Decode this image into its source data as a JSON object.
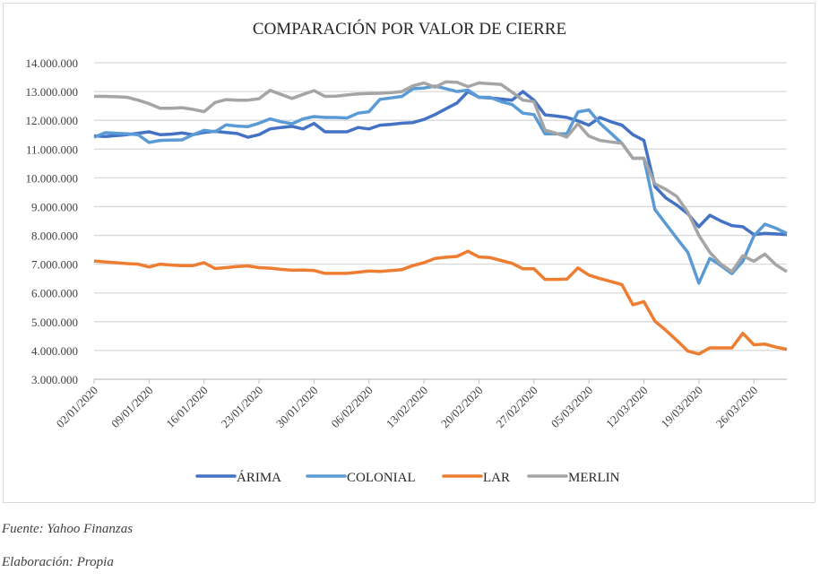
{
  "chart_data": {
    "type": "line",
    "title": "COMPARACIÓN POR VALOR DE CIERRE",
    "xlabel": "",
    "ylabel": "",
    "ylim": [
      3000000,
      14000000
    ],
    "y_ticks": [
      "3.000.000",
      "4.000.000",
      "5.000.000",
      "6.000.000",
      "7.000.000",
      "8.000.000",
      "9.000.000",
      "10.000.000",
      "11.000.000",
      "12.000.000",
      "13.000.000",
      "14.000.000"
    ],
    "x_tick_labels": [
      "02/01/2020",
      "09/01/2020",
      "16/01/2020",
      "23/01/2020",
      "30/01/2020",
      "06/02/2020",
      "13/02/2020",
      "20/02/2020",
      "27/02/2020",
      "05/03/2020",
      "12/03/2020",
      "19/03/2020",
      "26/03/2020"
    ],
    "x_tick_every": 5,
    "grid": "horizontal",
    "legend": "bottom",
    "x": [
      "02/01/2020",
      "03/01/2020",
      "06/01/2020",
      "07/01/2020",
      "08/01/2020",
      "09/01/2020",
      "10/01/2020",
      "13/01/2020",
      "14/01/2020",
      "15/01/2020",
      "16/01/2020",
      "17/01/2020",
      "20/01/2020",
      "21/01/2020",
      "22/01/2020",
      "23/01/2020",
      "24/01/2020",
      "27/01/2020",
      "28/01/2020",
      "29/01/2020",
      "30/01/2020",
      "31/01/2020",
      "03/02/2020",
      "04/02/2020",
      "05/02/2020",
      "06/02/2020",
      "07/02/2020",
      "10/02/2020",
      "11/02/2020",
      "12/02/2020",
      "13/02/2020",
      "14/02/2020",
      "17/02/2020",
      "18/02/2020",
      "19/02/2020",
      "20/02/2020",
      "21/02/2020",
      "24/02/2020",
      "25/02/2020",
      "26/02/2020",
      "27/02/2020",
      "28/02/2020",
      "02/03/2020",
      "03/03/2020",
      "04/03/2020",
      "05/03/2020",
      "06/03/2020",
      "09/03/2020",
      "10/03/2020",
      "11/03/2020",
      "12/03/2020",
      "13/03/2020",
      "16/03/2020",
      "17/03/2020",
      "18/03/2020",
      "19/03/2020",
      "20/03/2020",
      "23/03/2020",
      "24/03/2020",
      "25/03/2020",
      "26/03/2020",
      "27/03/2020",
      "30/03/2020",
      "31/03/2020"
    ],
    "series": [
      {
        "name": "ÁRIMA",
        "color": "#4472C4",
        "values": [
          11460000,
          11440000,
          11470000,
          11500000,
          11550000,
          11600000,
          11500000,
          11520000,
          11560000,
          11500000,
          11580000,
          11620000,
          11580000,
          11540000,
          11410000,
          11500000,
          11700000,
          11750000,
          11790000,
          11700000,
          11890000,
          11600000,
          11600000,
          11600000,
          11750000,
          11700000,
          11830000,
          11860000,
          11900000,
          11920000,
          12030000,
          12200000,
          12400000,
          12600000,
          13000000,
          12800000,
          12780000,
          12740000,
          12700000,
          13000000,
          12700000,
          12190000,
          12150000,
          12100000,
          11980000,
          11830000,
          12100000,
          11950000,
          11830000,
          11500000,
          11300000,
          9700000,
          9300000,
          9050000,
          8750000,
          8300000,
          8700000,
          8500000,
          8340000,
          8300000,
          8030000,
          8070000,
          8050000,
          8030000
        ]
      },
      {
        "name": "COLONIAL",
        "color": "#5B9BD5",
        "values": [
          11410000,
          11570000,
          11550000,
          11530000,
          11500000,
          11230000,
          11300000,
          11310000,
          11320000,
          11500000,
          11650000,
          11600000,
          11840000,
          11800000,
          11780000,
          11900000,
          12050000,
          11950000,
          11880000,
          12050000,
          12130000,
          12100000,
          12100000,
          12080000,
          12250000,
          12300000,
          12730000,
          12780000,
          12830000,
          13100000,
          13120000,
          13190000,
          13100000,
          13000000,
          13050000,
          12800000,
          12800000,
          12650000,
          12550000,
          12250000,
          12200000,
          11530000,
          11530000,
          11530000,
          12290000,
          12360000,
          11900000,
          11550000,
          11200000,
          10680000,
          10680000,
          8900000,
          8400000,
          7900000,
          7410000,
          6340000,
          7200000,
          6950000,
          6670000,
          7100000,
          7980000,
          8390000,
          8250000,
          8070000
        ]
      },
      {
        "name": "LAR",
        "color": "#ED7D31",
        "values": [
          7110000,
          7080000,
          7050000,
          7020000,
          7000000,
          6900000,
          7000000,
          6970000,
          6950000,
          6950000,
          7050000,
          6850000,
          6880000,
          6920000,
          6940000,
          6880000,
          6860000,
          6820000,
          6790000,
          6800000,
          6780000,
          6680000,
          6680000,
          6680000,
          6720000,
          6760000,
          6750000,
          6780000,
          6810000,
          6950000,
          7050000,
          7200000,
          7240000,
          7270000,
          7450000,
          7250000,
          7230000,
          7130000,
          7030000,
          6840000,
          6840000,
          6470000,
          6470000,
          6480000,
          6870000,
          6620000,
          6500000,
          6400000,
          6290000,
          5590000,
          5700000,
          5020000,
          4700000,
          4350000,
          3980000,
          3880000,
          4090000,
          4090000,
          4090000,
          4600000,
          4200000,
          4220000,
          4120000,
          4040000
        ]
      },
      {
        "name": "MERLIN",
        "color": "#A5A5A5",
        "values": [
          12830000,
          12830000,
          12820000,
          12800000,
          12700000,
          12580000,
          12420000,
          12420000,
          12440000,
          12380000,
          12300000,
          12620000,
          12720000,
          12700000,
          12700000,
          12750000,
          13040000,
          12900000,
          12760000,
          12900000,
          13030000,
          12830000,
          12840000,
          12880000,
          12920000,
          12930000,
          12940000,
          12960000,
          13000000,
          13200000,
          13300000,
          13150000,
          13340000,
          13320000,
          13170000,
          13300000,
          13270000,
          13250000,
          12980000,
          12700000,
          12650000,
          11660000,
          11550000,
          11420000,
          11880000,
          11450000,
          11300000,
          11250000,
          11200000,
          10680000,
          10680000,
          9790000,
          9600000,
          9350000,
          8800000,
          8000000,
          7410000,
          7000000,
          6740000,
          7290000,
          7100000,
          7350000,
          6980000,
          6740000
        ]
      }
    ]
  },
  "footer": {
    "source": "Fuente: Yahoo Finanzas",
    "author": "Elaboración: Propia"
  }
}
